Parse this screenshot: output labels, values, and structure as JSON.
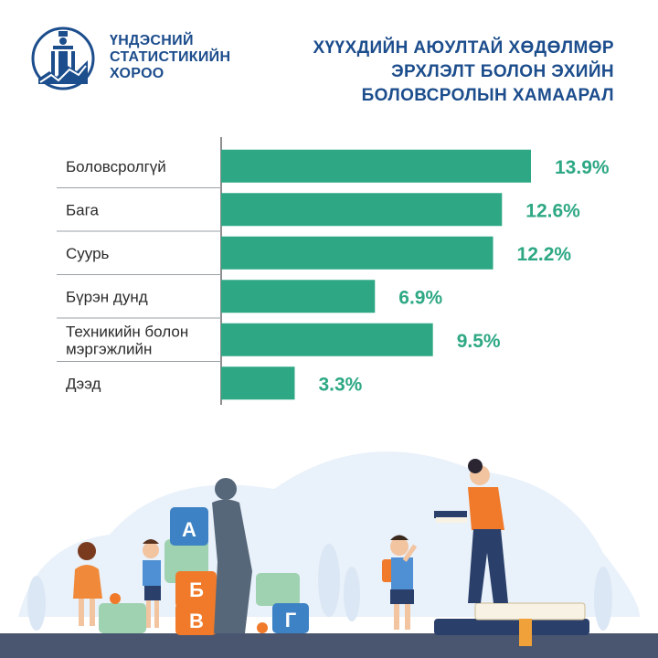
{
  "header": {
    "org_lines": [
      "ҮНДЭСНИЙ",
      "СТАТИСТИКИЙН",
      "ХОРОО"
    ],
    "title_lines": [
      "ХҮҮХДИЙН АЮУЛТАЙ ХӨДӨЛМӨР",
      "ЭРХЛЭЛТ БОЛОН ЭХИЙН",
      "БОЛОВСРОЛЫН ХАМААРАЛ"
    ]
  },
  "chart_data": {
    "type": "bar",
    "orientation": "horizontal",
    "categories": [
      "Боловсролгүй",
      "Бага",
      "Суурь",
      "Бүрэн дунд",
      "Техникийн болон мэргэжлийн",
      "Дээд"
    ],
    "category_lines": [
      [
        "Боловсролгүй"
      ],
      [
        "Бага"
      ],
      [
        "Суурь"
      ],
      [
        "Бүрэн дунд"
      ],
      [
        "Техникийн болон",
        "мэргэжлийн"
      ],
      [
        "Дээд"
      ]
    ],
    "values": [
      13.9,
      12.6,
      12.2,
      6.9,
      9.5,
      3.3
    ],
    "value_labels": [
      "13.9%",
      "12.6%",
      "12.2%",
      "6.9%",
      "9.5%",
      "3.3%"
    ],
    "unit": "%",
    "xlim": [
      0,
      14
    ],
    "grid": false,
    "legend": "none",
    "bar_color": "#2ea884",
    "label_color": "#2ea884"
  },
  "illustration": {
    "block_letters": [
      "А",
      "Б",
      "В",
      "Г"
    ]
  },
  "colors": {
    "brand_blue": "#1c4d8c",
    "accent_green": "#2ea884",
    "block_orange": "#f07a2a",
    "block_blue": "#3d82c4",
    "block_green": "#9fd2b0"
  }
}
